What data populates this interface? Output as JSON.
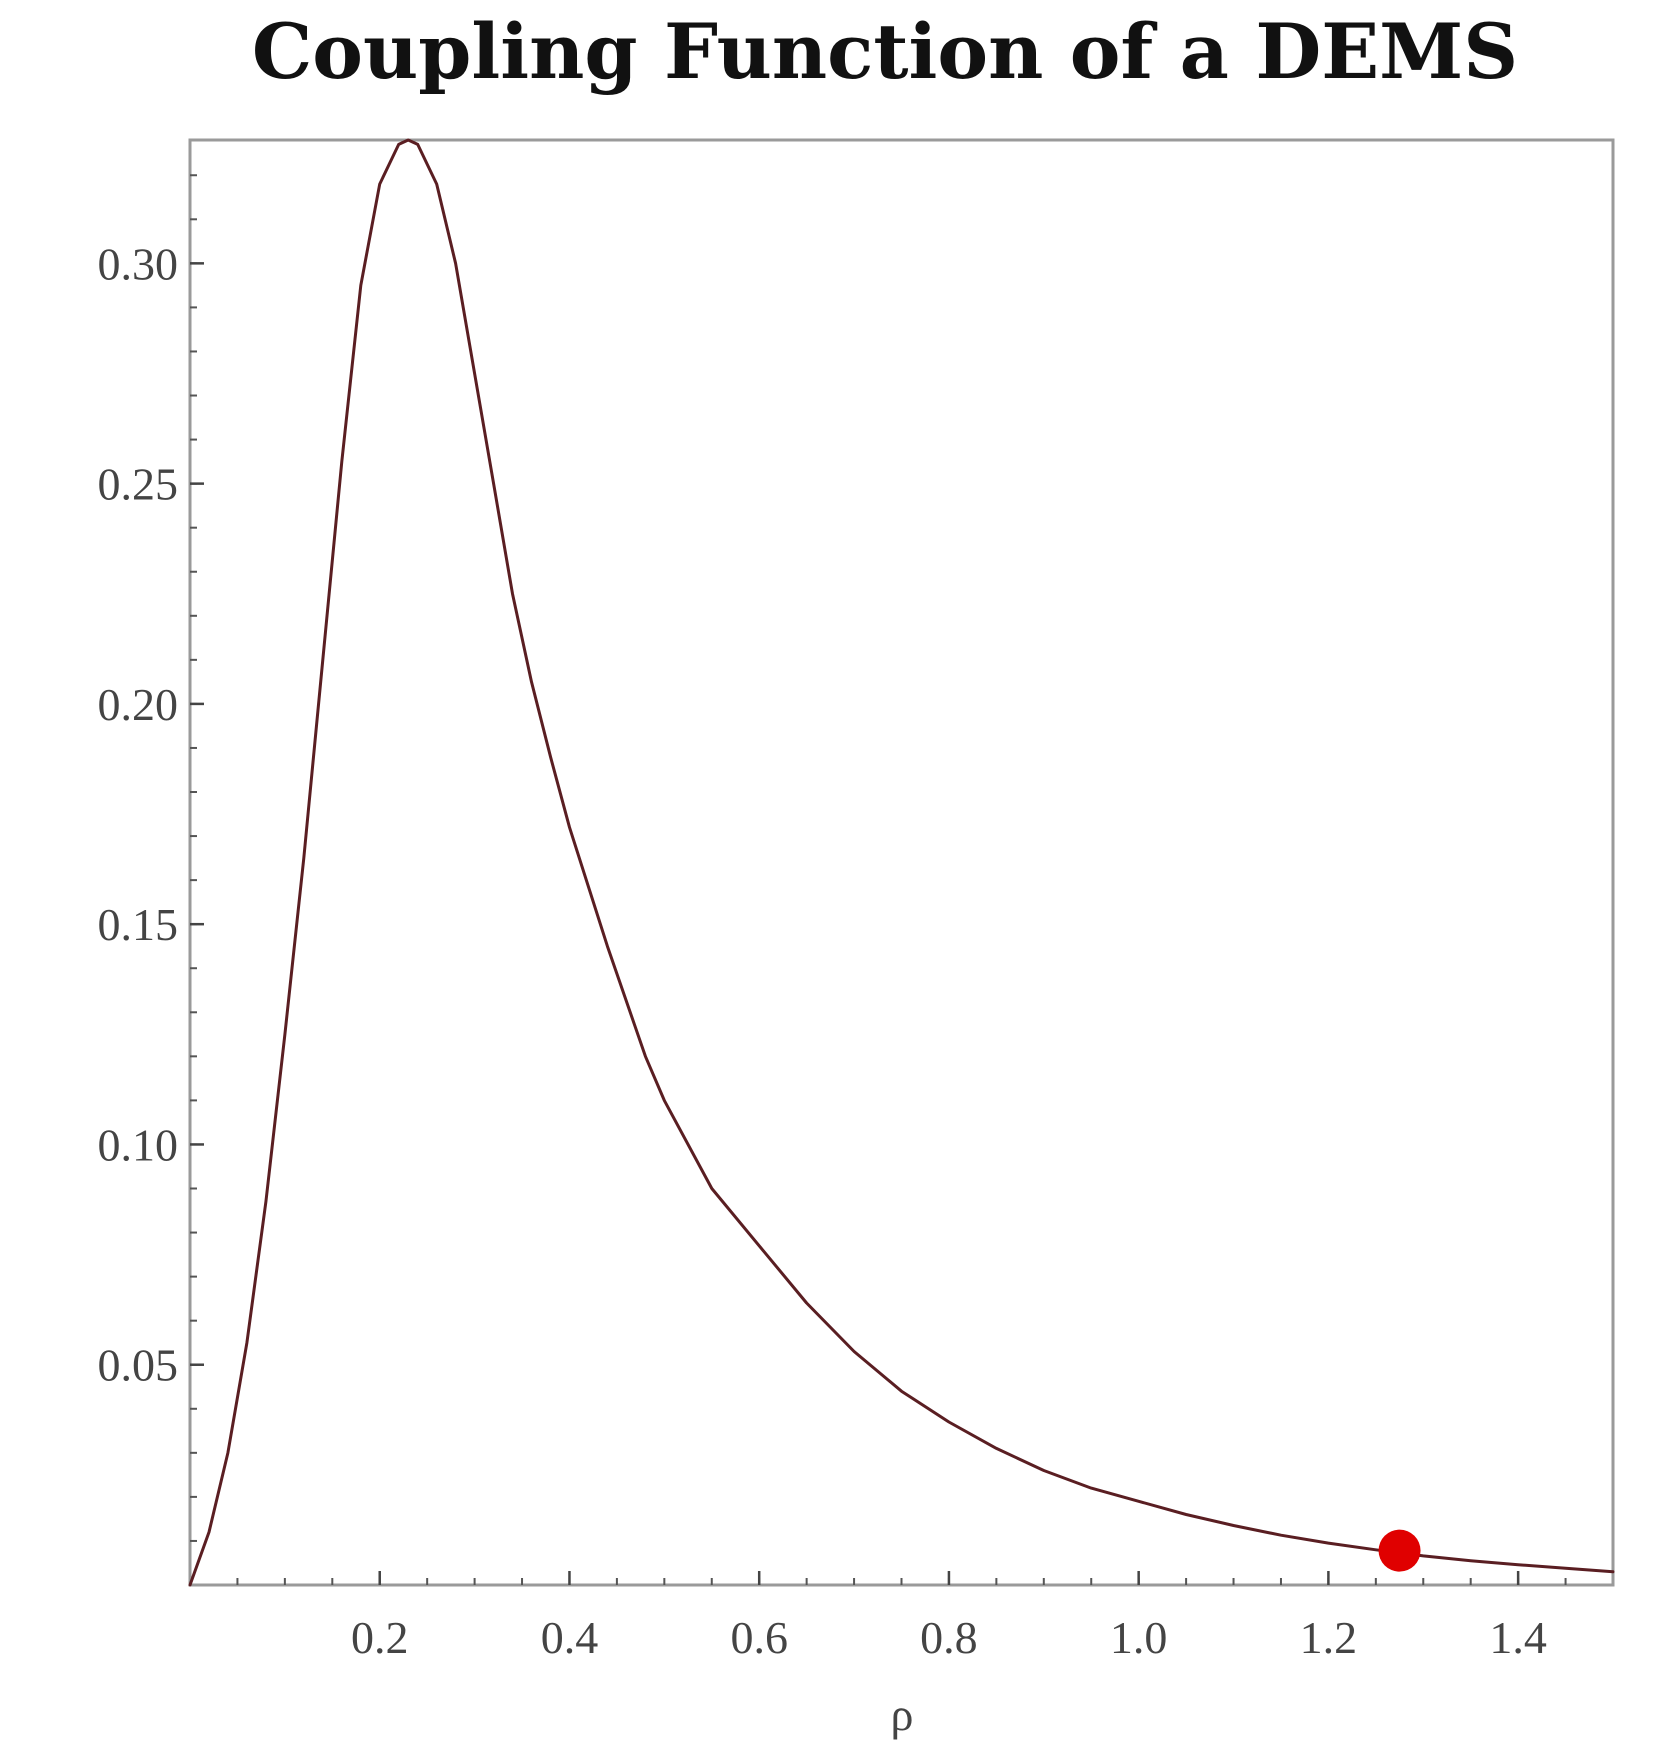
{
  "chart_data": {
    "type": "line",
    "title": "Coupling Function of a DEMS",
    "xlabel": "ρ",
    "ylabel": "",
    "xlim": [
      0.0,
      1.5
    ],
    "ylim": [
      0.0,
      0.328
    ],
    "grid": false,
    "legend": "none",
    "xticks": [
      {
        "value": 0.2,
        "label": "0.2"
      },
      {
        "value": 0.4,
        "label": "0.4"
      },
      {
        "value": 0.6,
        "label": "0.6"
      },
      {
        "value": 0.8,
        "label": "0.8"
      },
      {
        "value": 1.0,
        "label": "1.0"
      },
      {
        "value": 1.2,
        "label": "1.2"
      },
      {
        "value": 1.4,
        "label": "1.4"
      }
    ],
    "yticks": [
      {
        "value": 0.05,
        "label": "0.05"
      },
      {
        "value": 0.1,
        "label": "0.10"
      },
      {
        "value": 0.15,
        "label": "0.15"
      },
      {
        "value": 0.2,
        "label": "0.20"
      },
      {
        "value": 0.25,
        "label": "0.25"
      },
      {
        "value": 0.3,
        "label": "0.30"
      }
    ],
    "series": [
      {
        "color": "#5a1e22",
        "x": [
          0.0,
          0.02,
          0.04,
          0.06,
          0.08,
          0.1,
          0.12,
          0.14,
          0.16,
          0.18,
          0.2,
          0.22,
          0.23,
          0.24,
          0.26,
          0.28,
          0.3,
          0.32,
          0.34,
          0.36,
          0.38,
          0.4,
          0.44,
          0.48,
          0.5,
          0.55,
          0.6,
          0.65,
          0.7,
          0.75,
          0.8,
          0.85,
          0.9,
          0.95,
          1.0,
          1.05,
          1.1,
          1.15,
          1.2,
          1.25,
          1.3,
          1.35,
          1.4,
          1.45,
          1.5
        ],
        "y": [
          0.0,
          0.012,
          0.03,
          0.055,
          0.087,
          0.125,
          0.165,
          0.21,
          0.255,
          0.295,
          0.318,
          0.327,
          0.328,
          0.327,
          0.318,
          0.3,
          0.275,
          0.25,
          0.225,
          0.205,
          0.188,
          0.172,
          0.145,
          0.12,
          0.11,
          0.09,
          0.077,
          0.064,
          0.053,
          0.044,
          0.037,
          0.031,
          0.026,
          0.022,
          0.019,
          0.016,
          0.0135,
          0.0113,
          0.0095,
          0.008,
          0.0066,
          0.0055,
          0.0046,
          0.0038,
          0.003
        ]
      }
    ],
    "highlight_point": {
      "x": 1.275,
      "y": 0.0078,
      "color": "#e00000"
    }
  }
}
